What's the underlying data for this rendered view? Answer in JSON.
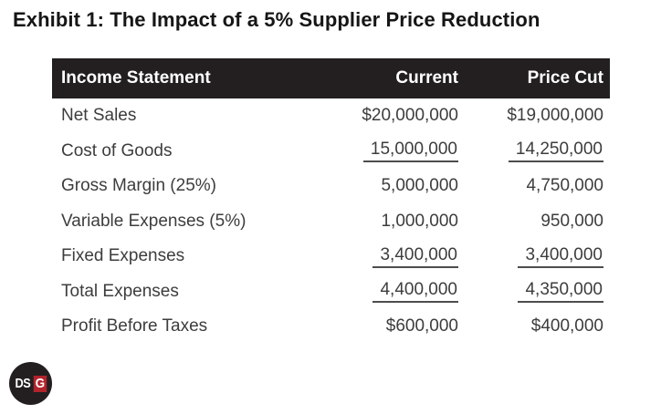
{
  "title": "Exhibit 1: The Impact of a 5% Supplier Price Reduction",
  "table": {
    "columns": {
      "label": "Income Statement",
      "current": "Current",
      "price_cut": "Price Cut"
    },
    "rows": [
      {
        "label": "Net Sales",
        "current": "$20,000,000",
        "price_cut": "$19,000,000",
        "underline": false
      },
      {
        "label": "Cost of Goods",
        "current": "15,000,000",
        "price_cut": "14,250,000",
        "underline": true
      },
      {
        "label": "Gross Margin (25%)",
        "current": "5,000,000",
        "price_cut": "4,750,000",
        "underline": false
      },
      {
        "label": "Variable Expenses (5%)",
        "current": "1,000,000",
        "price_cut": "950,000",
        "underline": false
      },
      {
        "label": "Fixed Expenses",
        "current": "3,400,000",
        "price_cut": "3,400,000",
        "underline": true
      },
      {
        "label": "Total Expenses",
        "current": "4,400,000",
        "price_cut": "4,350,000",
        "underline": true
      },
      {
        "label": "Profit Before Taxes",
        "current": "$600,000",
        "price_cut": "$400,000",
        "underline": false
      }
    ]
  },
  "logo": {
    "text_ds": "DS",
    "text_g": "G"
  },
  "colors": {
    "background": "#ffffff",
    "title_text": "#161616",
    "header_bg": "#231f20",
    "header_text": "#ffffff",
    "body_text": "#3d3d3d",
    "underline": "#4d4d4d",
    "logo_bg": "#231f20",
    "logo_accent": "#b2242b"
  },
  "chart_data": {
    "type": "table",
    "title": "Exhibit 1: The Impact of a 5% Supplier Price Reduction",
    "columns": [
      "Income Statement",
      "Current",
      "Price Cut"
    ],
    "categories": [
      "Net Sales",
      "Cost of Goods",
      "Gross Margin (25%)",
      "Variable Expenses (5%)",
      "Fixed Expenses",
      "Total Expenses",
      "Profit Before Taxes"
    ],
    "series": [
      {
        "name": "Current",
        "values": [
          20000000,
          15000000,
          5000000,
          1000000,
          3400000,
          4400000,
          600000
        ]
      },
      {
        "name": "Price Cut",
        "values": [
          19000000,
          14250000,
          4750000,
          950000,
          3400000,
          4350000,
          400000
        ]
      }
    ]
  }
}
